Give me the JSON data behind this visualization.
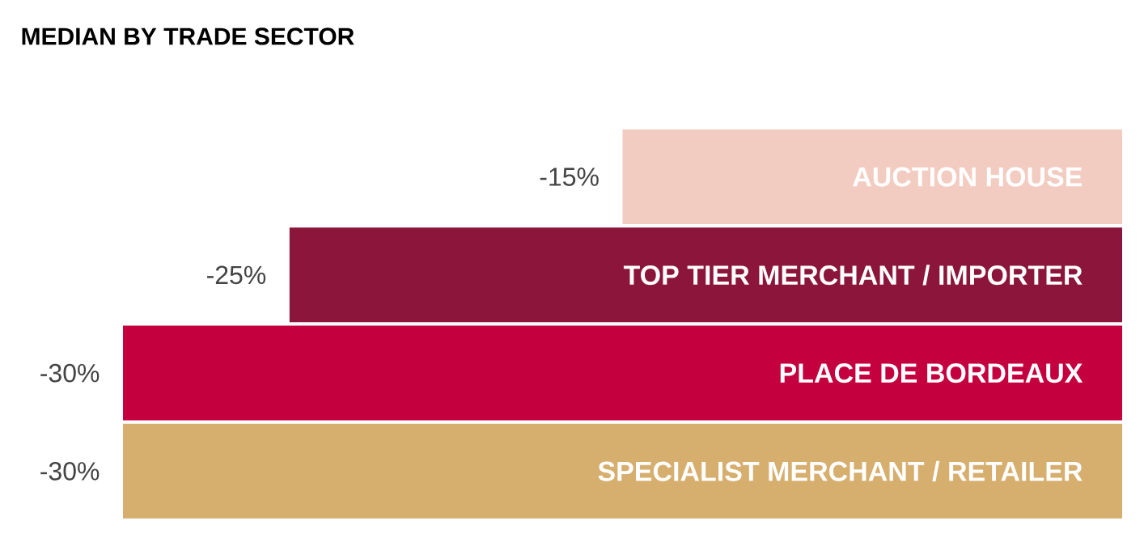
{
  "chart_data": {
    "type": "bar",
    "orientation": "horizontal",
    "title": "MEDIAN BY TRADE SECTOR",
    "categories": [
      "AUCTION HOUSE",
      "TOP TIER MERCHANT / IMPORTER",
      "PLACE DE BORDEAUX",
      "SPECIALIST MERCHANT / RETAILER"
    ],
    "values": [
      -15,
      -25,
      -30,
      -30
    ],
    "colors": [
      "#f2cbc1",
      "#8b153b",
      "#c4003f",
      "#d6ae6e"
    ],
    "value_labels": [
      "-15%",
      "-25%",
      "-30%",
      "-30%"
    ],
    "xlim": [
      -30,
      0
    ],
    "tick_labels": false
  }
}
